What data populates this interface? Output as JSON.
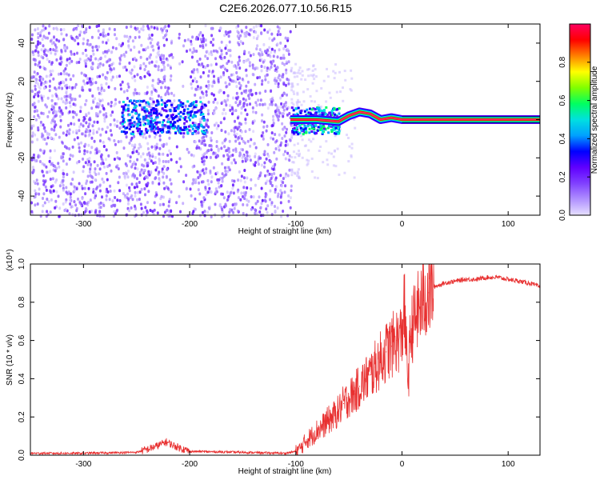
{
  "title": "C2E6.2026.077.10.56.R15",
  "chart_data": [
    {
      "type": "heatmap",
      "xlabel": "Height of straight line (km)",
      "ylabel": "Frequency (Hz)",
      "xlim": [
        -350,
        130
      ],
      "ylim": [
        -50,
        50
      ],
      "xticks": [
        "-300",
        "-200",
        "-100",
        "0",
        "100"
      ],
      "xtick_values": [
        -300,
        -200,
        -100,
        0,
        100
      ],
      "yticks": [
        "-40",
        "-20",
        "0",
        "20",
        "40"
      ],
      "ytick_values": [
        -40,
        -20,
        0,
        20,
        40
      ],
      "colorbar": {
        "label": "Normalized spectral amplitude",
        "range": [
          0,
          1
        ],
        "ticks": [
          "0.0",
          "0.2",
          "0.4",
          "0.6",
          "0.8"
        ],
        "tick_values": [
          0,
          0.2,
          0.4,
          0.6,
          0.8
        ],
        "colors": [
          "#e6e0ff",
          "#b090ff",
          "#8040ff",
          "#6000ff",
          "#0000ff",
          "#00a0ff",
          "#00e0e0",
          "#00ff60",
          "#80ff00",
          "#ffff00",
          "#ff8000",
          "#ff0000",
          "#ff0060"
        ]
      },
      "features": {
        "noise_region": [
          -350,
          -105
        ],
        "bright_blob_center": [
          -225,
          2
        ],
        "line_start": -105,
        "carrier_trace": [
          [
            -105,
            0
          ],
          [
            -80,
            0
          ],
          [
            -60,
            -1
          ],
          [
            -50,
            2
          ],
          [
            -40,
            4
          ],
          [
            -30,
            3
          ],
          [
            -20,
            0
          ],
          [
            -10,
            1
          ],
          [
            0,
            0
          ],
          [
            130,
            0
          ]
        ]
      }
    },
    {
      "type": "line",
      "xlabel": "Height of straight line (km)",
      "ylabel": "SNR (10 * v/v)",
      "y_scale_label": "(x10⁴)",
      "xlim": [
        -350,
        130
      ],
      "ylim": [
        0,
        1.0
      ],
      "xticks": [
        "-300",
        "-200",
        "-100",
        "0",
        "100"
      ],
      "xtick_values": [
        -300,
        -200,
        -100,
        0,
        100
      ],
      "yticks": [
        "0.0",
        "0.2",
        "0.4",
        "0.6",
        "0.8",
        "1.0"
      ],
      "ytick_values": [
        0,
        0.2,
        0.4,
        0.6,
        0.8,
        1.0
      ],
      "series": [
        {
          "color": "#e83030",
          "x": [
            -350,
            -300,
            -250,
            -240,
            -230,
            -222,
            -215,
            -205,
            -200,
            -150,
            -110,
            -100,
            -95,
            -90,
            -85,
            -80,
            -75,
            -70,
            -65,
            -60,
            -55,
            -50,
            -45,
            -40,
            -35,
            -30,
            -25,
            -20,
            -15,
            -10,
            -5,
            0,
            2,
            4,
            6,
            8,
            10,
            15,
            20,
            25,
            30,
            40,
            50,
            60,
            70,
            80,
            90,
            100,
            110,
            120,
            130
          ],
          "y": [
            0.01,
            0.01,
            0.015,
            0.03,
            0.05,
            0.07,
            0.05,
            0.03,
            0.02,
            0.015,
            0.01,
            0.02,
            0.04,
            0.08,
            0.1,
            0.13,
            0.15,
            0.18,
            0.2,
            0.23,
            0.27,
            0.3,
            0.32,
            0.36,
            0.39,
            0.42,
            0.46,
            0.5,
            0.54,
            0.57,
            0.6,
            0.62,
            0.8,
            0.55,
            0.4,
            0.62,
            0.68,
            0.75,
            0.81,
            0.85,
            0.88,
            0.9,
            0.91,
            0.92,
            0.92,
            0.93,
            0.93,
            0.92,
            0.91,
            0.9,
            0.88
          ]
        }
      ]
    }
  ]
}
